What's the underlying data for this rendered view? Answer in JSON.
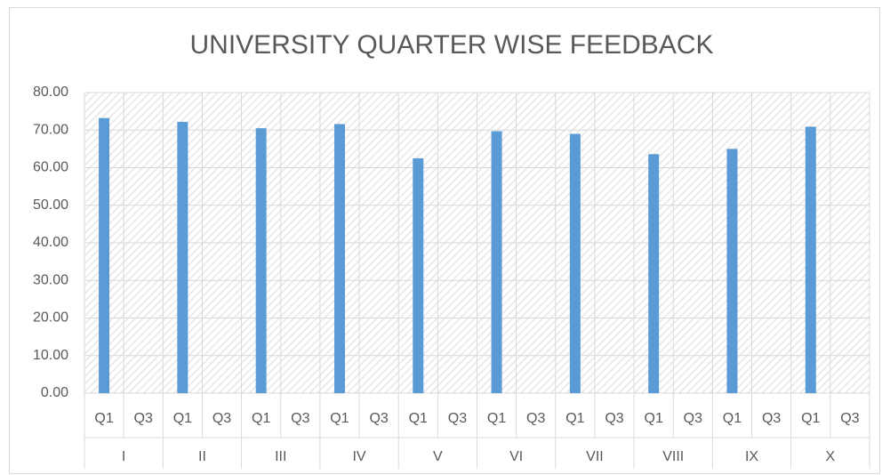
{
  "chart_data": {
    "type": "bar",
    "title": "UNIVERSITY QUARTER WISE FEEDBACK",
    "groups": [
      "I",
      "II",
      "III",
      "IV",
      "V",
      "VI",
      "VII",
      "VIII",
      "IX",
      "X"
    ],
    "categories": [
      "Q1",
      "Q3",
      "Q1",
      "Q3",
      "Q1",
      "Q3",
      "Q1",
      "Q3",
      "Q1",
      "Q3",
      "Q1",
      "Q3",
      "Q1",
      "Q3",
      "Q1",
      "Q3",
      "Q1",
      "Q3",
      "Q1",
      "Q3"
    ],
    "values": [
      73.2,
      null,
      72.2,
      null,
      70.5,
      null,
      71.6,
      null,
      62.5,
      null,
      69.7,
      null,
      69.0,
      null,
      63.6,
      null,
      65.0,
      null,
      70.9,
      null
    ],
    "color": "#5b9bd5",
    "ylim": [
      0,
      80
    ],
    "yticks": [
      {
        "value": 0,
        "label": "0.00"
      },
      {
        "value": 10,
        "label": "10.00"
      },
      {
        "value": 20,
        "label": "20.00"
      },
      {
        "value": 30,
        "label": "30.00"
      },
      {
        "value": 40,
        "label": "40.00"
      },
      {
        "value": 50,
        "label": "50.00"
      },
      {
        "value": 60,
        "label": "60.00"
      },
      {
        "value": 70,
        "label": "70.00"
      },
      {
        "value": 80,
        "label": "80.00"
      }
    ],
    "grid": true
  }
}
